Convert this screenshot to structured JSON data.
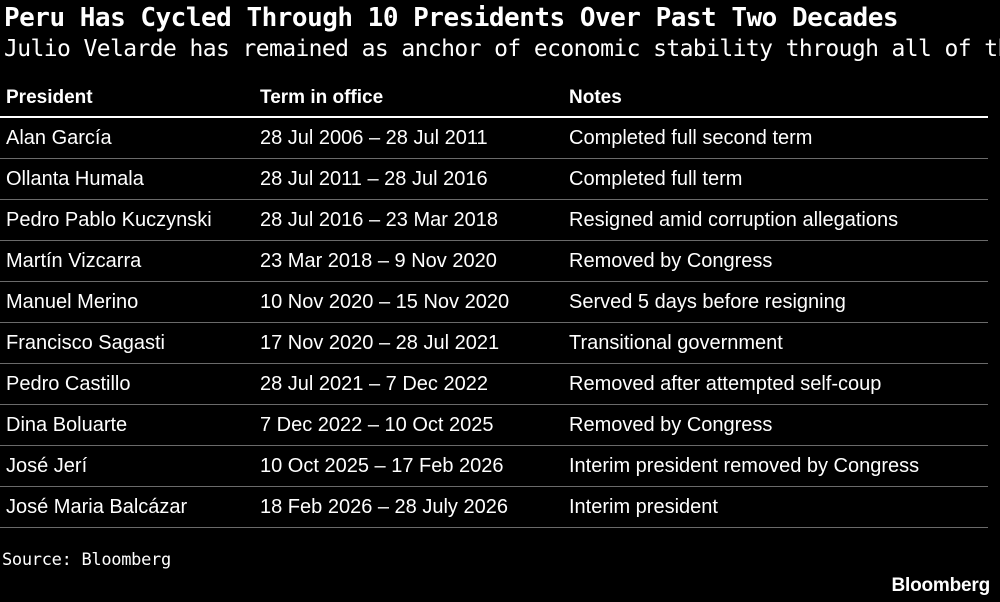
{
  "title": "Peru Has Cycled Through 10 Presidents Over Past Two Decades",
  "subtitle": "Julio Velarde has remained as anchor of economic stability through all of them",
  "source": "Source: Bloomberg",
  "brand": "Bloomberg",
  "colors": {
    "background": "#000000",
    "text": "#ffffff",
    "rule": "#6a6a6a"
  },
  "chart_data": {
    "type": "table",
    "columns": [
      "President",
      "Term in office",
      "Notes"
    ],
    "rows": [
      [
        "Alan García",
        "28 Jul 2006 – 28 Jul 2011",
        "Completed full second term"
      ],
      [
        "Ollanta Humala",
        "28 Jul 2011 – 28 Jul 2016",
        "Completed full term"
      ],
      [
        "Pedro Pablo Kuczynski",
        "28 Jul 2016 – 23 Mar 2018",
        "Resigned amid corruption allegations"
      ],
      [
        "Martín Vizcarra",
        "23 Mar 2018 – 9 Nov 2020",
        "Removed by Congress"
      ],
      [
        "Manuel Merino",
        "10 Nov 2020 – 15 Nov 2020",
        "Served 5 days before resigning"
      ],
      [
        "Francisco Sagasti",
        "17 Nov 2020 – 28 Jul 2021",
        "Transitional government"
      ],
      [
        "Pedro Castillo",
        "28 Jul 2021 – 7 Dec 2022",
        "Removed after attempted self-coup"
      ],
      [
        "Dina Boluarte",
        "7 Dec 2022 – 10 Oct 2025",
        "Removed by Congress"
      ],
      [
        "José Jerí",
        "10 Oct 2025 – 17 Feb 2026",
        "Interim president removed by Congress"
      ],
      [
        "José Maria Balcázar",
        "18 Feb 2026 – 28 July 2026",
        "Interim president"
      ]
    ]
  }
}
